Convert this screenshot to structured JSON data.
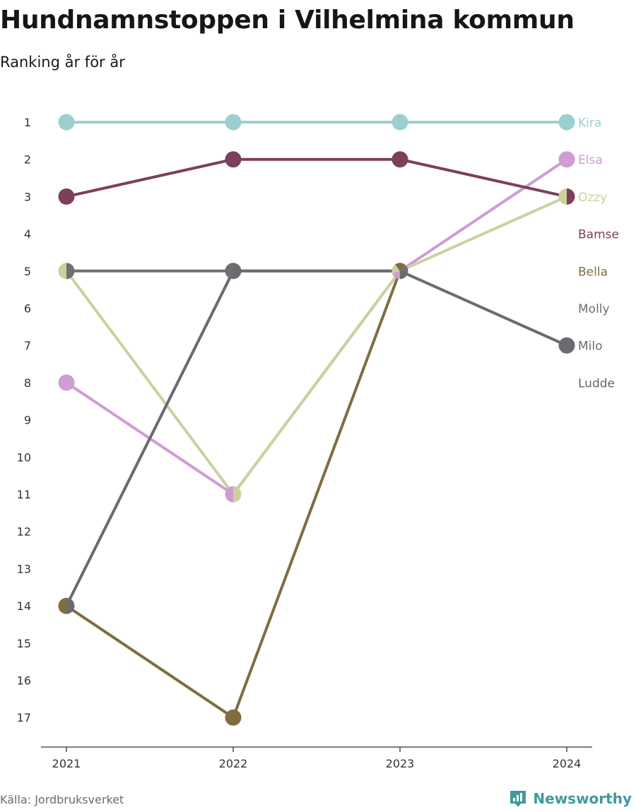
{
  "header": {
    "title": "Hundnamnstoppen i Vilhelmina kommun",
    "subtitle": "Ranking år för år"
  },
  "footer": {
    "source": "Källa: Jordbruksverket",
    "brand": "Newsworthy",
    "brand_icon": "bar-chart-badge-icon"
  },
  "colors": {
    "axis": "#333333",
    "tick_text": "#333333",
    "brand": "#3f9a9c"
  },
  "chart_data": {
    "type": "line",
    "x": [
      "2021",
      "2022",
      "2023",
      "2024"
    ],
    "ylim": [
      17,
      1
    ],
    "y_ticks": [
      "1",
      "2",
      "3",
      "4",
      "5",
      "6",
      "7",
      "8",
      "9",
      "10",
      "11",
      "12",
      "13",
      "14",
      "15",
      "16",
      "17"
    ],
    "grid": false,
    "legend": "right-end labels",
    "series": [
      {
        "name": "Kira",
        "color": "#9bcfd0",
        "values": [
          1,
          1,
          1,
          1
        ]
      },
      {
        "name": "Elsa",
        "color": "#cf9cd4",
        "values": [
          8,
          11,
          5,
          2
        ]
      },
      {
        "name": "Ozzy",
        "color": "#ccd19c",
        "values": [
          5,
          11,
          5,
          3
        ]
      },
      {
        "name": "Bamse",
        "color": "#7d3f5a",
        "values": [
          3,
          2,
          2,
          3
        ]
      },
      {
        "name": "Bella",
        "color": "#7f6d40",
        "values": [
          14,
          17,
          5,
          null
        ]
      },
      {
        "name": "Molly",
        "color": "#6f6f74",
        "values": [
          5,
          5,
          5,
          null
        ]
      },
      {
        "name": "Milo",
        "color": "#6a6a70",
        "values": [
          14,
          5,
          5,
          7
        ]
      },
      {
        "name": "Ludde",
        "color": "#67676c",
        "values": [
          null,
          null,
          null,
          null
        ]
      }
    ]
  }
}
